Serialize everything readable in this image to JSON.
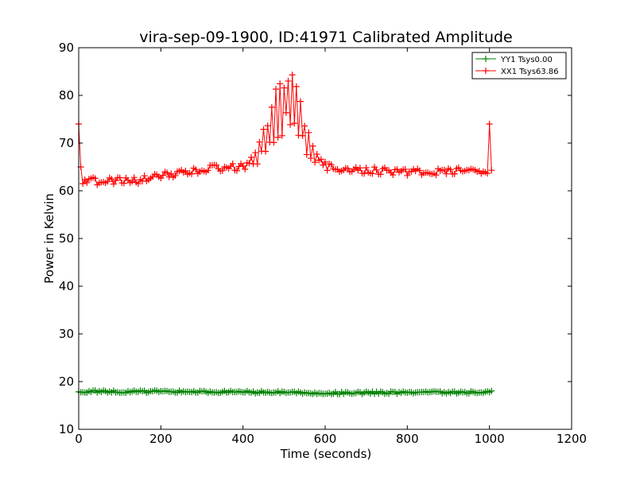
{
  "chart_data": {
    "type": "line",
    "title": "vira-sep-09-1900, ID:41971 Calibrated Amplitude",
    "xlabel": "Time (seconds)",
    "ylabel": "Power in Kelvin",
    "xlim": [
      0,
      1200
    ],
    "ylim": [
      10,
      90
    ],
    "xticks": [
      0,
      200,
      400,
      600,
      800,
      1000,
      1200
    ],
    "yticks": [
      10,
      20,
      30,
      40,
      50,
      60,
      70,
      80,
      90
    ],
    "grid": false,
    "legend_position": "top-right",
    "series": [
      {
        "name": "YY1 Tsys0.00",
        "color": "#008000",
        "marker": "+",
        "x_start": 0,
        "x_end": 1005,
        "x_step": 5,
        "baseline": [
          [
            0,
            17.9
          ],
          [
            300,
            17.9
          ],
          [
            600,
            17.6
          ],
          [
            1005,
            17.8
          ]
        ],
        "spikes": [],
        "jitter": 0.25
      },
      {
        "name": "XX1 Tsys63.86",
        "color": "#ff0000",
        "marker": "+",
        "x_start": 0,
        "x_end": 1005,
        "x_step": 5,
        "baseline": [
          [
            0,
            62.0
          ],
          [
            100,
            62.0
          ],
          [
            150,
            62.3
          ],
          [
            200,
            63.0
          ],
          [
            250,
            64.0
          ],
          [
            300,
            64.5
          ],
          [
            350,
            64.8
          ],
          [
            400,
            65.0
          ],
          [
            500,
            65.2
          ],
          [
            600,
            65.0
          ],
          [
            650,
            64.6
          ],
          [
            700,
            64.3
          ],
          [
            800,
            64.0
          ],
          [
            900,
            64.0
          ],
          [
            1005,
            64.3
          ]
        ],
        "spikes": [
          [
            0,
            74.0
          ],
          [
            5,
            65.0
          ],
          [
            1000,
            74.0
          ],
          [
            1005,
            64.3
          ]
        ],
        "bump": {
          "center": 505,
          "width": 55,
          "height": 20.5,
          "from": 390,
          "to": 630
        },
        "jitter": 0.8
      }
    ]
  }
}
